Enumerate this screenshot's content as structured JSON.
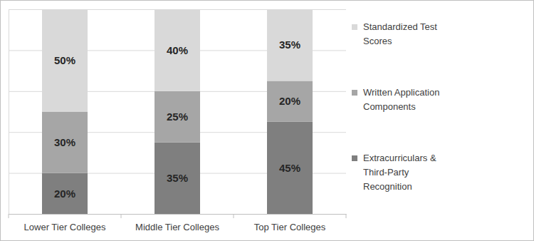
{
  "chart_data": {
    "type": "bar",
    "stacked": true,
    "categories": [
      "Lower Tier Colleges",
      "Middle Tier Colleges",
      "Top Tier Colleges"
    ],
    "series": [
      {
        "name": "Extracurriculars & Third-Party Recognition",
        "color": "#7f7f7f",
        "values": [
          20,
          35,
          45
        ],
        "value_labels": [
          "20%",
          "35%",
          "45%"
        ]
      },
      {
        "name": "Written Application Components",
        "color": "#a6a6a6",
        "values": [
          30,
          25,
          20
        ],
        "value_labels": [
          "30%",
          "25%",
          "20%"
        ]
      },
      {
        "name": "Standardized Test Scores",
        "color": "#d9d9d9",
        "values": [
          50,
          40,
          35
        ],
        "value_labels": [
          "50%",
          "40%",
          "35%"
        ]
      }
    ],
    "ylim": [
      0,
      100
    ],
    "yticks": [
      0,
      20,
      40,
      60,
      80,
      100
    ],
    "grid": true,
    "legend": "right",
    "data_labels": true,
    "tick_labels": "x"
  }
}
